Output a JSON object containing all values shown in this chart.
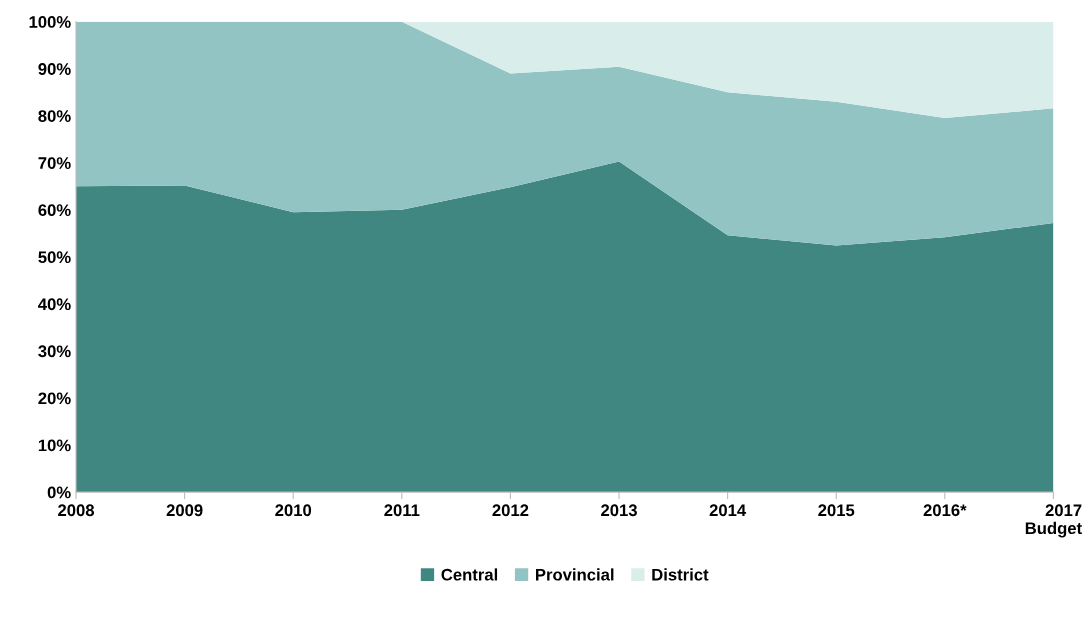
{
  "chart_data": {
    "type": "area",
    "stacked": true,
    "categories": [
      "2008",
      "2009",
      "2010",
      "2011",
      "2012",
      "2013",
      "2014",
      "2015",
      "2016*",
      "2017\nBudget"
    ],
    "series": [
      {
        "name": "Central",
        "color": "#418781",
        "values": [
          65,
          65.2,
          59.5,
          60,
          64.8,
          70.3,
          54.6,
          52.4,
          54.2,
          57.2
        ]
      },
      {
        "name": "Provincial",
        "color": "#93c4c4",
        "values": [
          35,
          34.8,
          40.5,
          40,
          24.2,
          20.1,
          30.4,
          30.6,
          25.3,
          24.4
        ]
      },
      {
        "name": "District",
        "color": "#d9edeb",
        "values": [
          0,
          0,
          0,
          0,
          11,
          9.6,
          15,
          17,
          20.5,
          18.4
        ]
      }
    ],
    "ylim": [
      0,
      100
    ],
    "yticks": [
      {
        "value": 0,
        "label": "0%"
      },
      {
        "value": 10,
        "label": "10%"
      },
      {
        "value": 20,
        "label": "20%"
      },
      {
        "value": 30,
        "label": "30%"
      },
      {
        "value": 40,
        "label": "40%"
      },
      {
        "value": 50,
        "label": "50%"
      },
      {
        "value": 60,
        "label": "60%"
      },
      {
        "value": 70,
        "label": "70%"
      },
      {
        "value": 80,
        "label": "80%"
      },
      {
        "value": 90,
        "label": "90%"
      },
      {
        "value": 100,
        "label": "100%"
      }
    ],
    "grid": false,
    "legend": "bottom"
  }
}
